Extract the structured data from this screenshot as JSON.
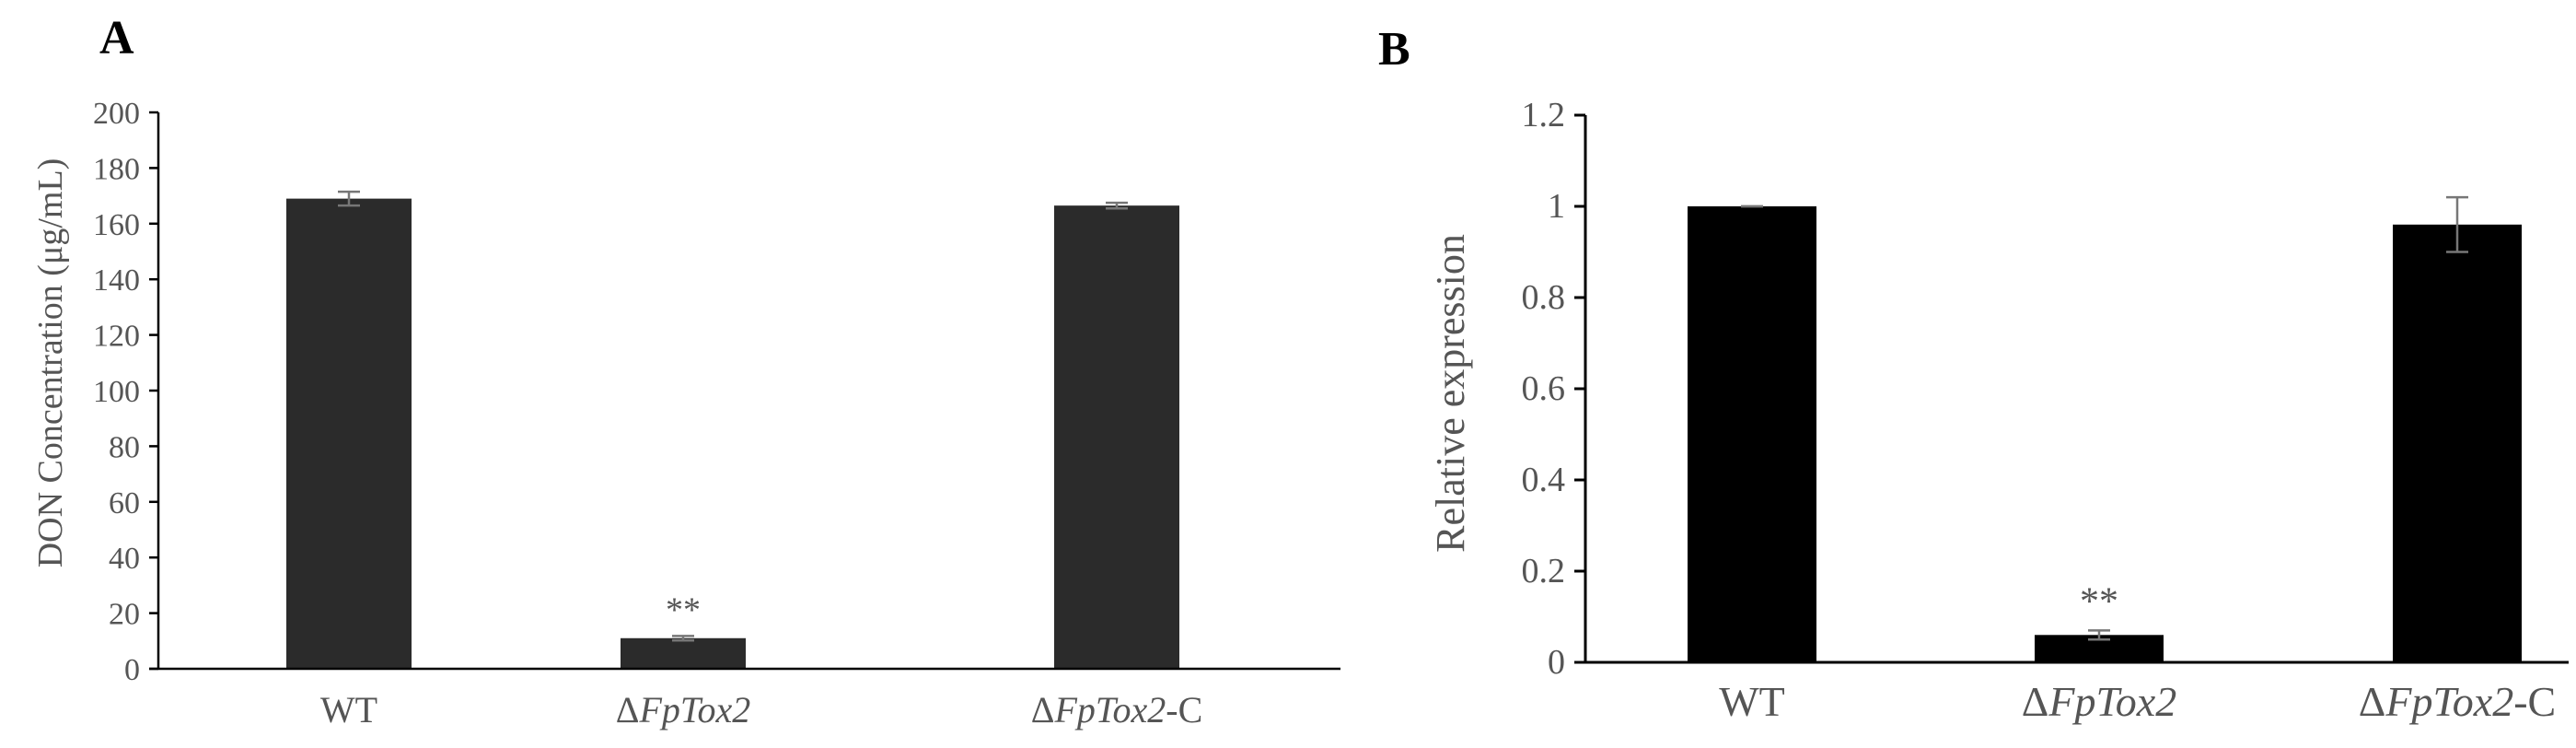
{
  "chart_data": [
    {
      "panel": "A",
      "type": "bar",
      "categories": [
        {
          "prefix": "",
          "italic": "",
          "suffix": "WT"
        },
        {
          "prefix": "Δ",
          "italic": "FpTox2",
          "suffix": ""
        },
        {
          "prefix": "Δ",
          "italic": "FpTox2",
          "suffix": "-C"
        }
      ],
      "values": [
        169,
        11,
        166.5
      ],
      "errors": [
        2.5,
        0.8,
        1
      ],
      "annotations": [
        "",
        "**",
        ""
      ],
      "ylabel": "DON Concentration (μg/mL)",
      "ylim": [
        0,
        200
      ],
      "yticks": [
        0,
        20,
        40,
        60,
        80,
        100,
        120,
        140,
        160,
        180,
        200
      ],
      "ytick_labels": [
        "0",
        "20",
        "40",
        "60",
        "80",
        "100",
        "120",
        "140",
        "160",
        "180",
        "200"
      ],
      "bar_color": "#2b2b2b",
      "grid": false
    },
    {
      "panel": "B",
      "type": "bar",
      "categories": [
        {
          "prefix": "",
          "italic": "",
          "suffix": "WT"
        },
        {
          "prefix": "Δ",
          "italic": "FpTox2",
          "suffix": ""
        },
        {
          "prefix": "Δ",
          "italic": "FpTox2",
          "suffix": "-C"
        }
      ],
      "values": [
        1.0,
        0.06,
        0.96
      ],
      "errors": [
        0,
        0.01,
        0.06
      ],
      "annotations": [
        "",
        "**",
        ""
      ],
      "ylabel": "Relative expression",
      "ylim": [
        0,
        1.2
      ],
      "yticks": [
        0,
        0.2,
        0.4,
        0.6,
        0.8,
        1.0,
        1.2
      ],
      "ytick_labels": [
        "0",
        "0.2",
        "0.4",
        "0.6",
        "0.8",
        "1",
        "1.2"
      ],
      "bar_color": "#000000",
      "grid": false
    }
  ]
}
